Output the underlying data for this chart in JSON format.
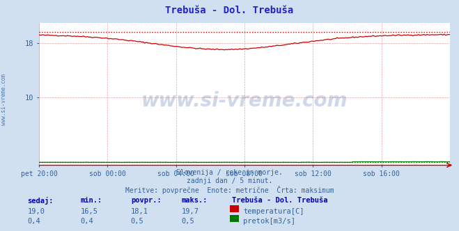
{
  "title": "Trebuša - Dol. Trebuša",
  "bg_color": "#d0e0f0",
  "plot_bg_color": "#ffffff",
  "grid_color": "#e8a0a0",
  "x_labels": [
    "pet 20:00",
    "sob 00:00",
    "sob 04:00",
    "sob 08:00",
    "sob 12:00",
    "sob 16:00"
  ],
  "x_ticks": [
    0,
    48,
    96,
    144,
    192,
    240
  ],
  "x_max": 288,
  "ylim": [
    0,
    21
  ],
  "y_ticks": [
    10,
    18
  ],
  "temp_max_val": 19.7,
  "temp_color": "#cc0000",
  "flow_color": "#007700",
  "flow_max_val": 0.5,
  "subtitle1": "Slovenija / reke in morje.",
  "subtitle2": "zadnji dan / 5 minut.",
  "subtitle3": "Meritve: povprečne  Enote: metrične  Črta: maksimum",
  "watermark": "www.si-vreme.com",
  "watermark_color": "#2050a0",
  "legend_title": "Trebuša - Dol. Trebuša",
  "legend_items": [
    "temperatura[C]",
    "pretok[m3/s]"
  ],
  "legend_colors": [
    "#cc0000",
    "#007700"
  ],
  "table_headers": [
    "sedaj:",
    "min.:",
    "povpr.:",
    "maks.:"
  ],
  "table_temp": [
    "19,0",
    "16,5",
    "18,1",
    "19,7"
  ],
  "table_flow": [
    "0,4",
    "0,4",
    "0,5",
    "0,5"
  ],
  "text_color": "#3060a0",
  "header_color": "#0000bb",
  "title_color": "#2020cc"
}
